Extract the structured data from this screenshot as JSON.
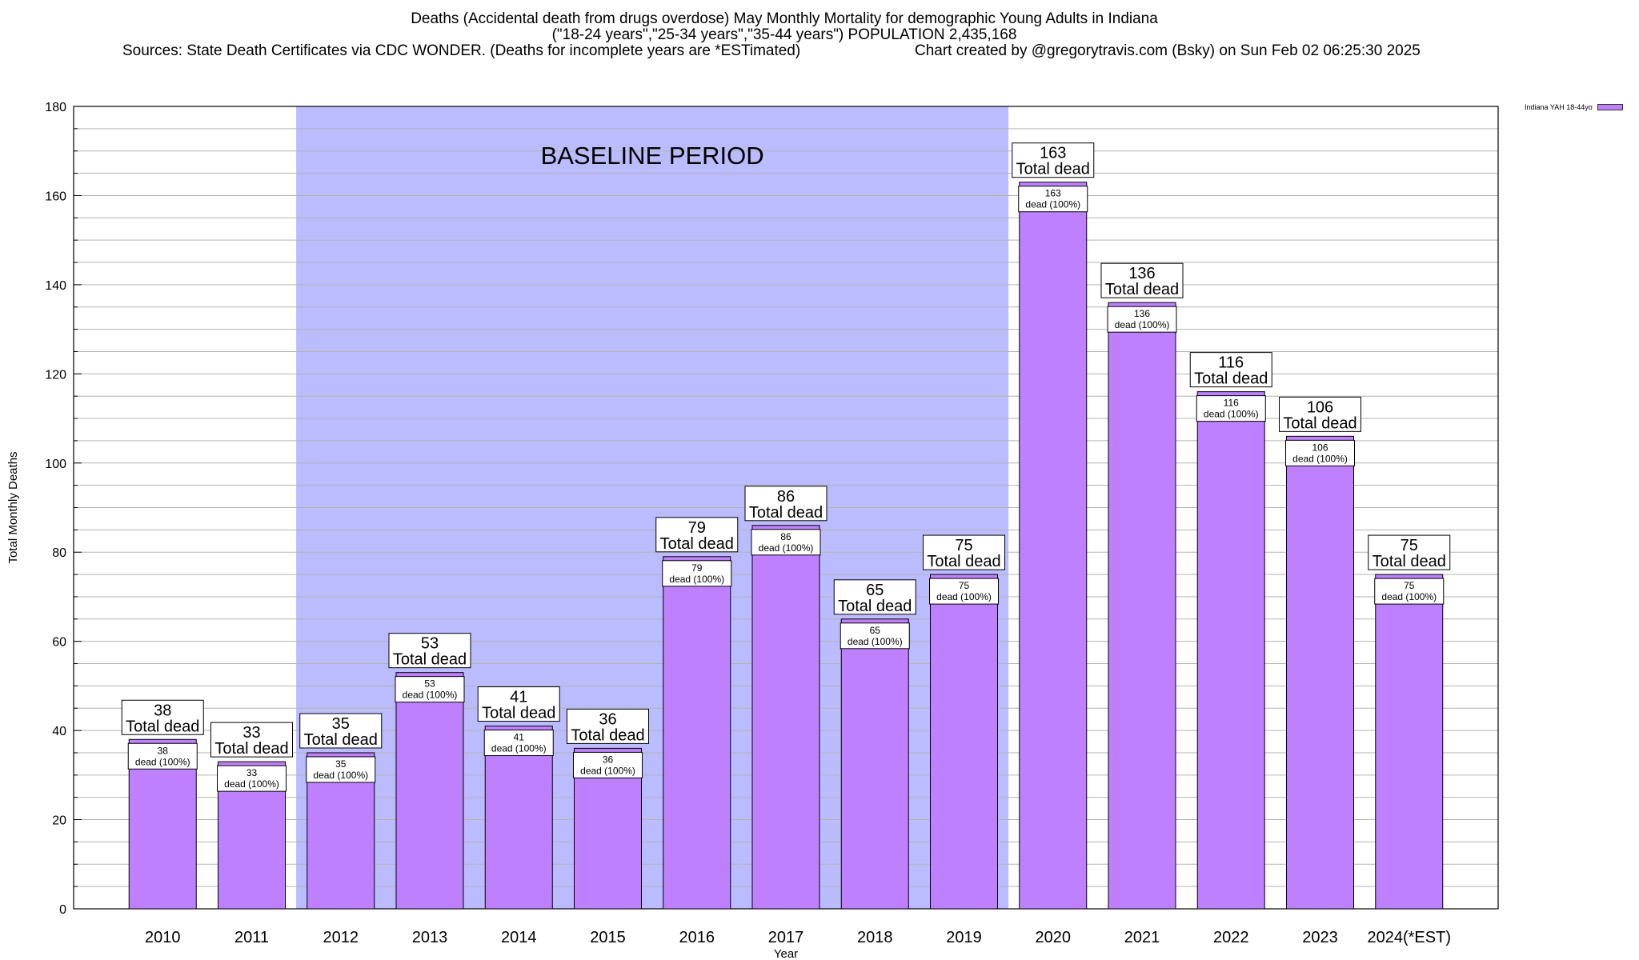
{
  "title": {
    "line1": "Deaths (Accidental death from drugs overdose) May Monthly Mortality for demographic Young Adults in Indiana",
    "line2": "(\"18-24 years\",\"25-34 years\",\"35-44 years\") POPULATION 2,435,168",
    "sources": "Sources: State Death Certificates via CDC WONDER. (Deaths for incomplete years are *ESTimated)",
    "credit": "Chart created by @gregorytravis.com (Bsky) on Sun Feb 02 06:25:30 2025"
  },
  "legend": {
    "label": "Indiana YAH 18-44yo",
    "color": "#bf80ff"
  },
  "chart_data": {
    "type": "bar",
    "xlabel": "Year",
    "ylabel": "Total Monthly Deaths",
    "ylim": [
      0,
      180
    ],
    "ytick_step": 20,
    "yticks": [
      "0",
      "20",
      "40",
      "60",
      "80",
      "100",
      "120",
      "140",
      "160",
      "180"
    ],
    "grid": true,
    "bar_color": "#bf80ff",
    "categories": [
      "2010",
      "2011",
      "2012",
      "2013",
      "2014",
      "2015",
      "2016",
      "2017",
      "2018",
      "2019",
      "2020",
      "2021",
      "2022",
      "2023",
      "2024(*EST)"
    ],
    "values": [
      38,
      33,
      35,
      53,
      41,
      36,
      79,
      86,
      65,
      75,
      163,
      136,
      116,
      106,
      75
    ],
    "total_label_suffix": "Total dead",
    "inner_label_suffix": "dead (100%)",
    "baseline": {
      "label": "BASELINE PERIOD",
      "from": "2012",
      "to": "2019",
      "color": "#bbbbff"
    }
  }
}
